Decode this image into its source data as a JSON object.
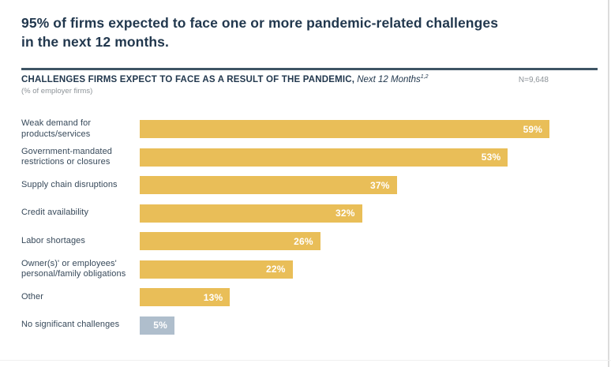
{
  "page": {
    "title": "95% of firms expected to face one or more pandemic-related challenges\nin the next 12 months."
  },
  "chart_header": {
    "heading_bold": "CHALLENGES FIRMS EXPECT TO FACE AS A RESULT OF THE PANDEMIC,",
    "heading_italic": "Next 12 Months",
    "heading_superscript": "1,2",
    "sample_size": "N=9,648",
    "subheading": "(% of employer firms)"
  },
  "chart_data": {
    "type": "bar",
    "orientation": "horizontal",
    "title": "Challenges firms expect to face as a result of the pandemic, next 12 months",
    "xlabel": "% of employer firms",
    "ylabel": "",
    "xlim": [
      0,
      63
    ],
    "grid": false,
    "legend": "none",
    "categories": [
      "Weak demand for products/services",
      "Government-mandated restrictions or closures",
      "Supply chain disruptions",
      "Credit availability",
      "Labor shortages",
      "Owner(s)' or employees' personal/family obligations",
      "Other",
      "No significant challenges"
    ],
    "values": [
      59,
      53,
      37,
      32,
      26,
      22,
      13,
      5
    ],
    "colors": {
      "bar_gold": "#e9be58",
      "bar_gray": "#afbecc"
    },
    "rows": [
      {
        "label": "Weak demand for\nproducts/services",
        "value": 59,
        "value_label": "59%",
        "color": "#e9be58"
      },
      {
        "label": "Government-mandated\nrestrictions or closures",
        "value": 53,
        "value_label": "53%",
        "color": "#e9be58"
      },
      {
        "label": "Supply chain disruptions",
        "value": 37,
        "value_label": "37%",
        "color": "#e9be58"
      },
      {
        "label": "Credit availability",
        "value": 32,
        "value_label": "32%",
        "color": "#e9be58"
      },
      {
        "label": "Labor shortages",
        "value": 26,
        "value_label": "26%",
        "color": "#e9be58"
      },
      {
        "label": "Owner(s)' or employees'\npersonal/family obligations",
        "value": 22,
        "value_label": "22%",
        "color": "#e9be58"
      },
      {
        "label": "Other",
        "value": 13,
        "value_label": "13%",
        "color": "#e9be58"
      },
      {
        "label": "No significant challenges",
        "value": 5,
        "value_label": "5%",
        "color": "#afbecc"
      }
    ]
  }
}
